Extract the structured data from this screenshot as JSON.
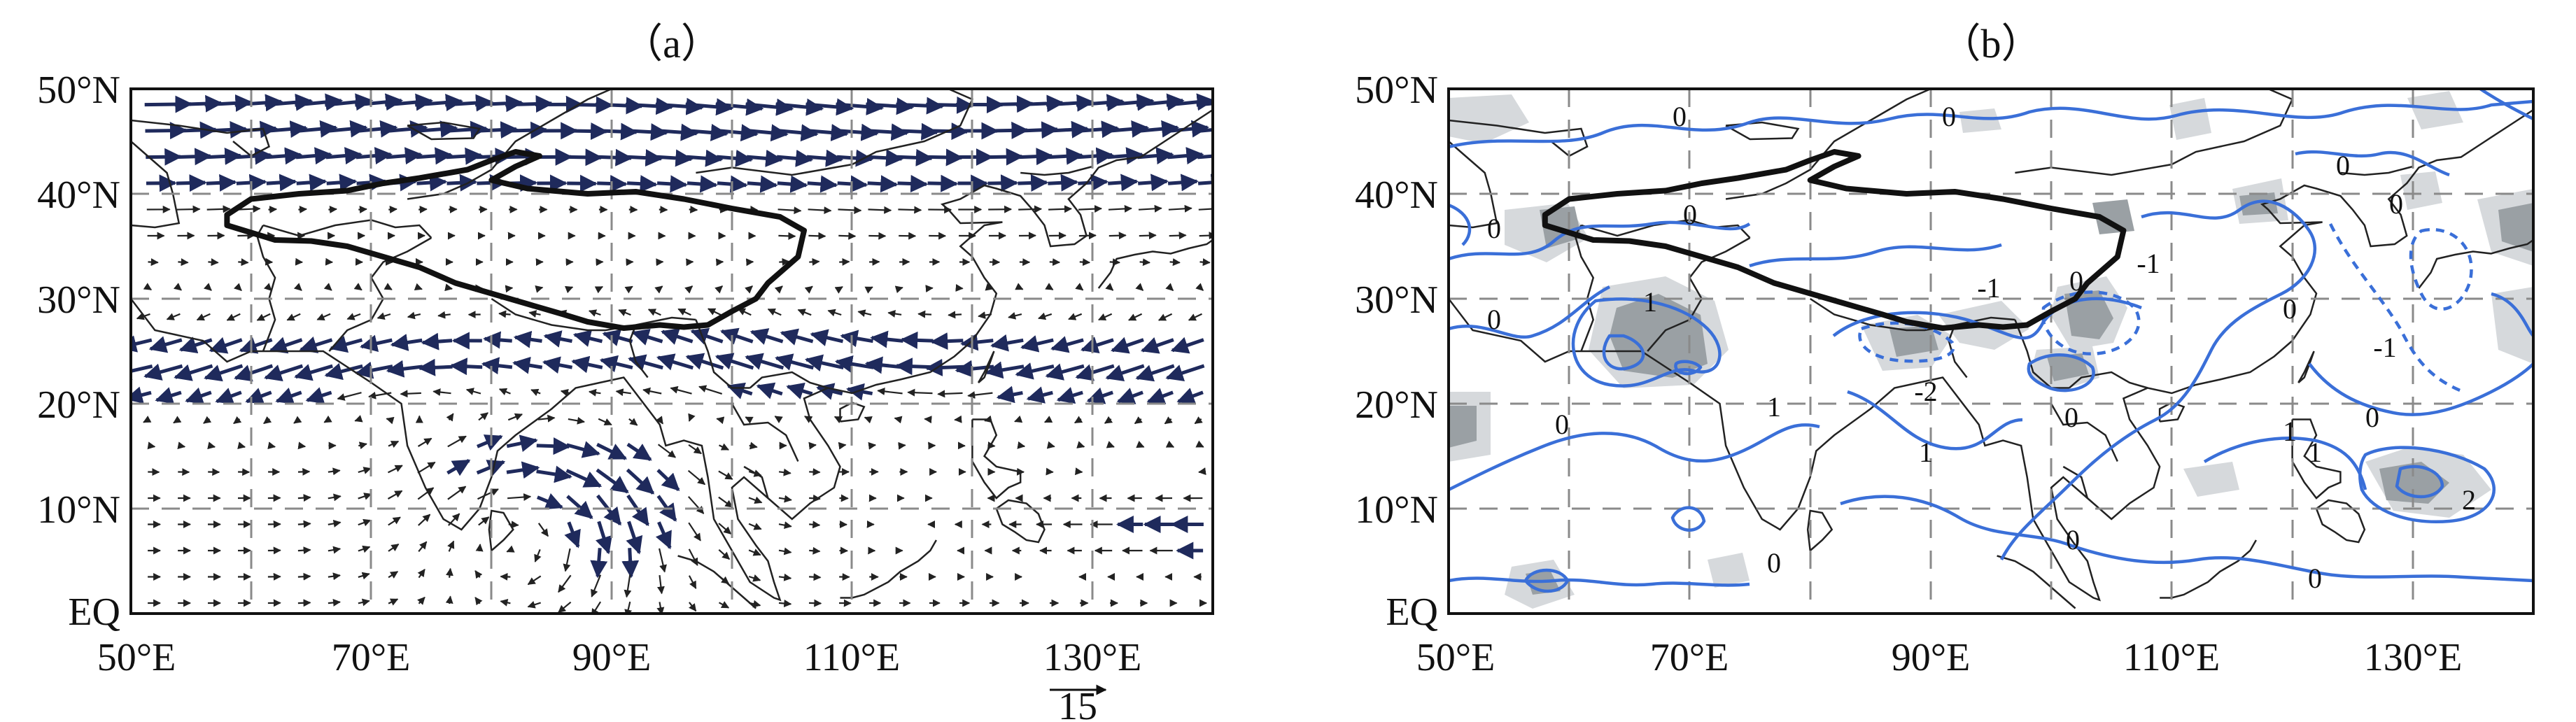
{
  "panels": [
    {
      "id": "a",
      "title": "（a）",
      "x_ticks": [
        "50°E",
        "70°E",
        "90°E",
        "110°E",
        "130°E"
      ],
      "y_ticks": [
        "50°N",
        "40°N",
        "30°N",
        "20°N",
        "10°N",
        "EQ"
      ],
      "reference_vector": {
        "magnitude": 15,
        "label": "15"
      }
    },
    {
      "id": "b",
      "title": "（b）",
      "x_ticks": [
        "50°E",
        "70°E",
        "90°E",
        "110°E",
        "130°E"
      ],
      "y_ticks": [
        "50°N",
        "40°N",
        "30°N",
        "20°N",
        "10°N",
        "EQ"
      ],
      "contour_labels": [
        "0",
        "0",
        "0",
        "0",
        "0",
        "0",
        "0",
        "0",
        "0",
        "0",
        "0",
        "0",
        "1",
        "1",
        "1",
        "1",
        "1",
        "-1",
        "-1",
        "-1",
        "-2",
        "2"
      ]
    }
  ],
  "map_data": {
    "type": "vector_and_contour_map",
    "lon_range": [
      50,
      140
    ],
    "lat_range": [
      0,
      50
    ],
    "grid_lons": [
      60,
      70,
      80,
      90,
      100,
      110,
      120,
      130
    ],
    "grid_lats": [
      10,
      20,
      30,
      40
    ],
    "colors": {
      "vector_strong": "#1f2a5c",
      "vector_weak": "#222222",
      "contour": "#3a6fd8",
      "shade_light": "#d6d9dc",
      "shade_dark": "#9aa0a4"
    }
  }
}
